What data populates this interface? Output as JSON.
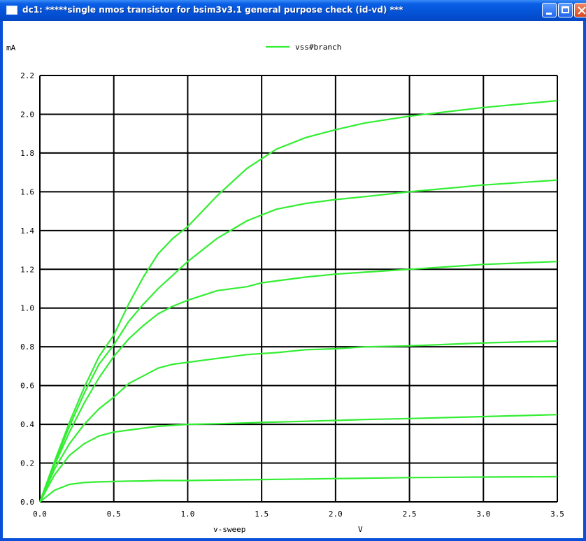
{
  "window": {
    "title": "dc1: *****single nmos transistor for bsim3v3.1  general purpose check (id-vd) ***",
    "app_icon": "window-icon",
    "controls": {
      "minimize": "minimize-icon",
      "maximize": "maximize-icon",
      "close": "close-icon"
    }
  },
  "colors": {
    "titlebar": "#0452d6",
    "background": "#ffffff",
    "grid": "#000000",
    "trace": "#33ee33"
  },
  "chart_data": {
    "type": "line",
    "title": "",
    "xlabel": "v-sweep",
    "xunit": "V",
    "ylabel": "",
    "yunit": "mA",
    "xlim": [
      0,
      3.5
    ],
    "ylim": [
      0,
      2.2
    ],
    "grid": true,
    "legend": {
      "position": "top-center",
      "entries": [
        "vss#branch"
      ]
    },
    "xticks": [
      "0.0",
      "0.5",
      "1.0",
      "1.5",
      "2.0",
      "2.5",
      "3.0",
      "3.5"
    ],
    "yticks": [
      "0.0",
      "0.2",
      "0.4",
      "0.6",
      "0.8",
      "1.0",
      "1.2",
      "1.4",
      "1.6",
      "1.8",
      "2.0",
      "2.2"
    ],
    "x": [
      0,
      0.1,
      0.2,
      0.3,
      0.4,
      0.5,
      0.6,
      0.7,
      0.8,
      0.9,
      1.0,
      1.2,
      1.4,
      1.5,
      1.6,
      1.8,
      2.0,
      2.2,
      2.5,
      3.0,
      3.5
    ],
    "series": [
      {
        "values": [
          0,
          0.06,
          0.09,
          0.1,
          0.103,
          0.105,
          0.107,
          0.108,
          0.11,
          0.11,
          0.11,
          0.112,
          0.114,
          0.115,
          0.116,
          0.118,
          0.12,
          0.122,
          0.125,
          0.128,
          0.13
        ]
      },
      {
        "values": [
          0,
          0.14,
          0.24,
          0.3,
          0.34,
          0.36,
          0.37,
          0.38,
          0.39,
          0.395,
          0.4,
          0.403,
          0.407,
          0.41,
          0.412,
          0.416,
          0.42,
          0.425,
          0.43,
          0.44,
          0.45
        ]
      },
      {
        "values": [
          0,
          0.17,
          0.3,
          0.4,
          0.48,
          0.54,
          0.61,
          0.65,
          0.69,
          0.71,
          0.72,
          0.74,
          0.76,
          0.765,
          0.77,
          0.785,
          0.79,
          0.8,
          0.805,
          0.82,
          0.83
        ]
      },
      {
        "values": [
          0,
          0.19,
          0.36,
          0.51,
          0.64,
          0.75,
          0.84,
          0.91,
          0.97,
          1.01,
          1.04,
          1.09,
          1.11,
          1.13,
          1.14,
          1.16,
          1.175,
          1.185,
          1.2,
          1.225,
          1.24
        ]
      },
      {
        "values": [
          0,
          0.2,
          0.39,
          0.56,
          0.71,
          0.81,
          0.93,
          1.02,
          1.1,
          1.17,
          1.24,
          1.36,
          1.45,
          1.48,
          1.51,
          1.54,
          1.56,
          1.575,
          1.6,
          1.635,
          1.66
        ]
      },
      {
        "values": [
          0,
          0.21,
          0.41,
          0.59,
          0.75,
          0.86,
          1.02,
          1.16,
          1.28,
          1.36,
          1.42,
          1.58,
          1.72,
          1.77,
          1.82,
          1.88,
          1.92,
          1.955,
          1.99,
          2.035,
          2.07
        ]
      }
    ]
  }
}
